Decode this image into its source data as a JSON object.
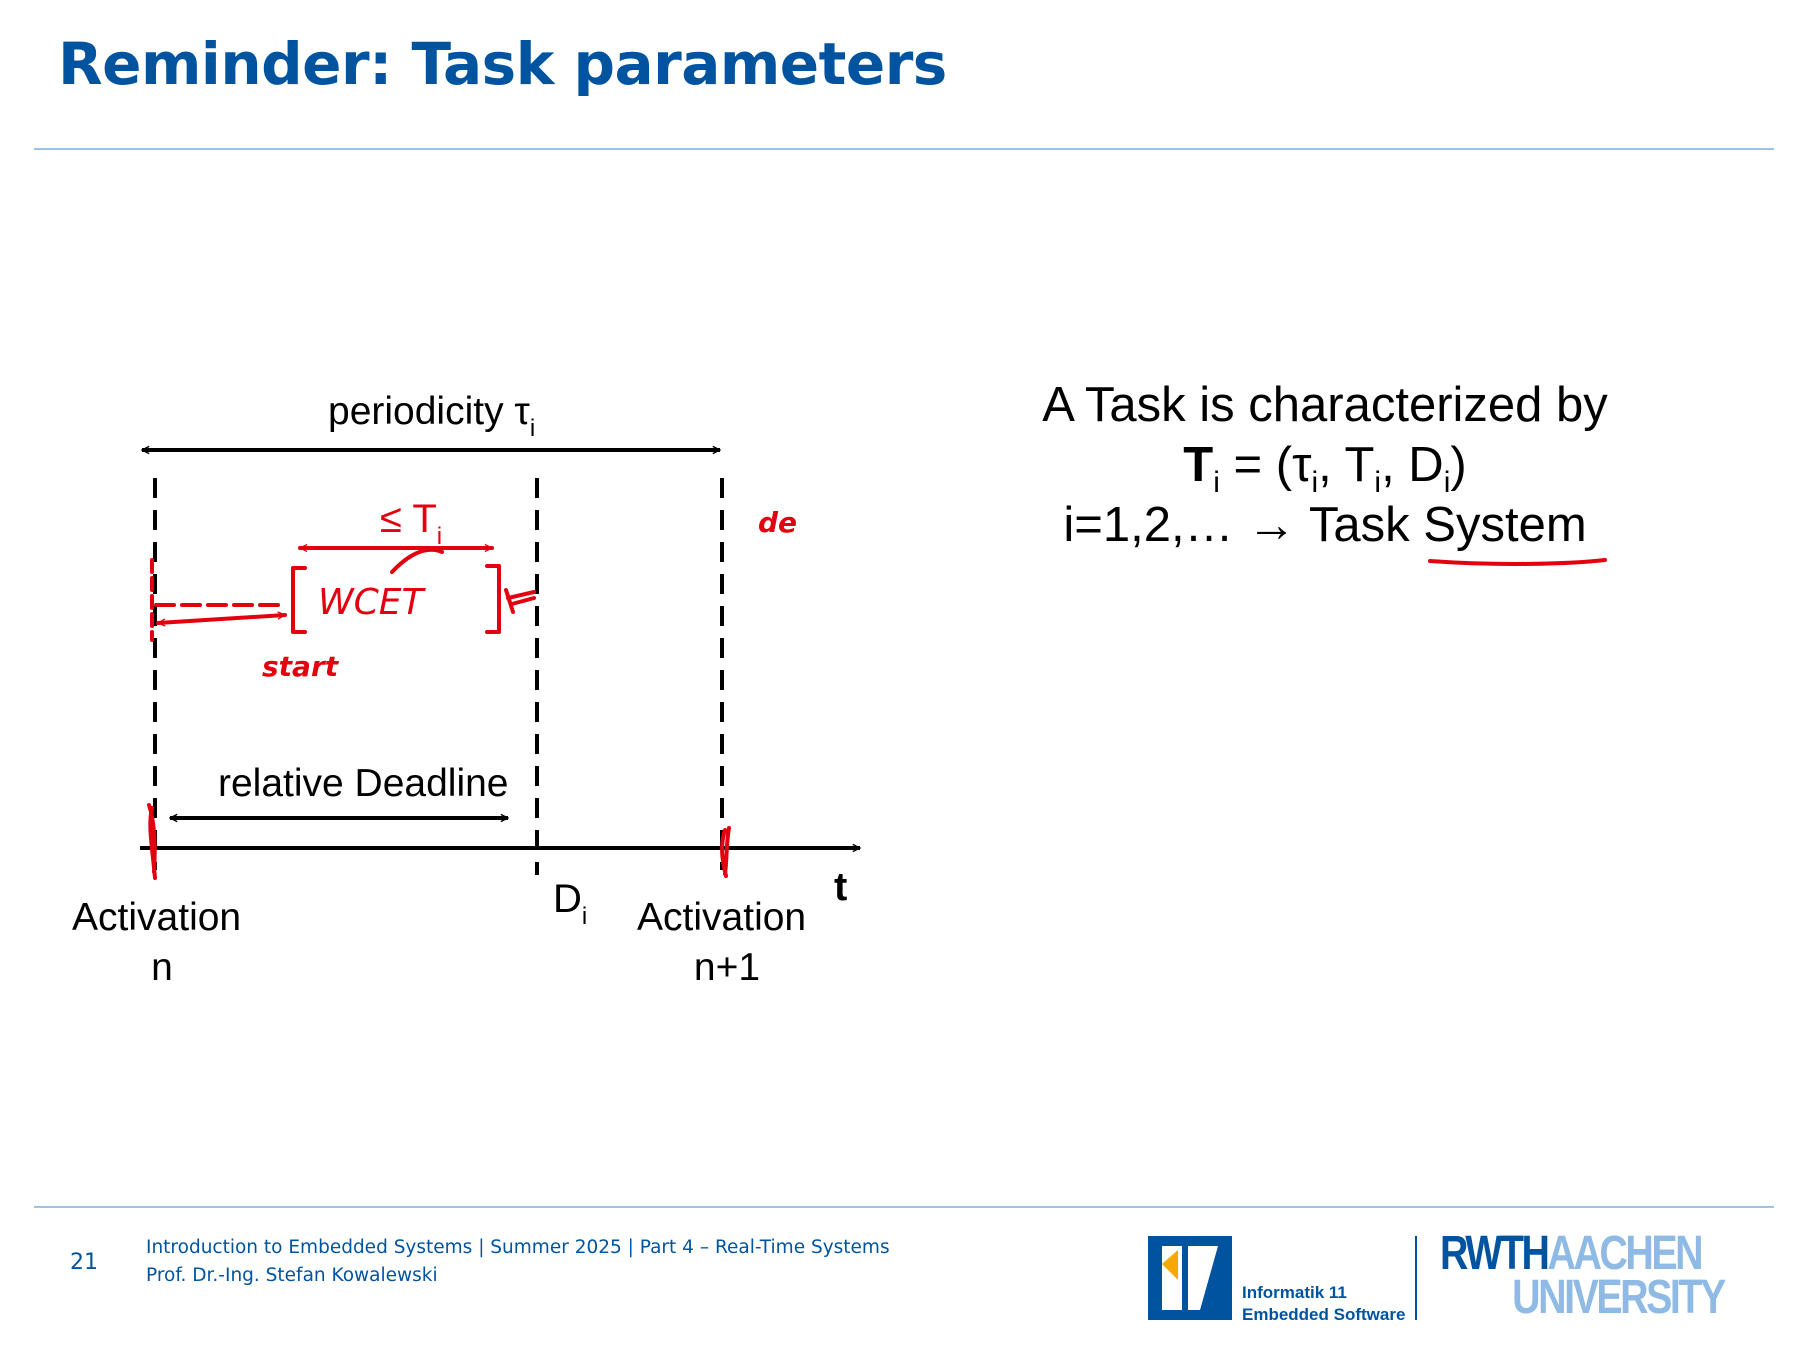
{
  "slide": {
    "title": "Reminder: Task parameters",
    "page_number": "21"
  },
  "diagram": {
    "periodicity_label": "periodicity τ",
    "periodicity_sub": "i",
    "relative_deadline_label": "relative Deadline",
    "deadline_label": "D",
    "deadline_sub": "i",
    "time_axis_label": "t",
    "activation_n_line1": "Activation",
    "activation_n_line2": "n",
    "activation_n1_line1": "Activation",
    "activation_n1_line2": "n+1"
  },
  "annotations": {
    "le_T_label": "≤ T",
    "le_T_sub": "i",
    "wcet_label": "WCET",
    "start_label": "start",
    "scribble_label": "de",
    "ink_color": "#e3000f"
  },
  "task": {
    "line1": "A Task is characterized by",
    "tuple_T": "T",
    "tuple_T_sub": "i",
    "tuple_eq_open": " = (τ",
    "tuple_tau_sub": "i",
    "tuple_comma1": ", T",
    "tuple_T2_sub": "i",
    "tuple_comma2": ", D",
    "tuple_D_sub": "i",
    "tuple_close": ")",
    "line3_prefix": "i=1,2,… → Task ",
    "line3_system": "System"
  },
  "footer": {
    "course_line": "Introduction to Embedded Systems | Summer 2025 | Part 4 – Real-Time Systems",
    "author_line": "Prof. Dr.-Ing. Stefan Kowalewski",
    "chair_line1": "Informatik 11",
    "chair_line2": "Embedded Software",
    "uni_part1": "RWTH",
    "uni_part2": "AACHEN",
    "uni_part3": "UNIVERSITY"
  },
  "colors": {
    "title_blue": "#00549f",
    "light_blue": "#8ebae5",
    "rule_blue": "#9dc3e6"
  }
}
